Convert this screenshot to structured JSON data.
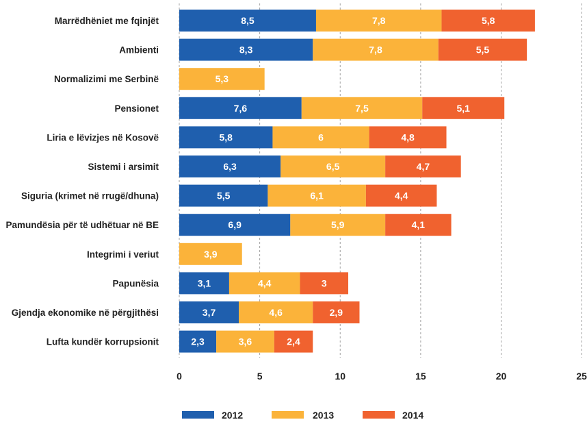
{
  "chart_data": {
    "type": "bar",
    "orientation": "horizontal",
    "stacked": true,
    "title": "",
    "xlabel": "",
    "ylabel": "",
    "xlim": [
      0,
      25
    ],
    "xticks": [
      0,
      5,
      10,
      15,
      20,
      25
    ],
    "grid": "vertical dashed",
    "legend_position": "bottom",
    "categories": [
      "Marrëdhëniet me fqinjët",
      "Ambienti",
      "Normalizimi me Serbinë",
      "Pensionet",
      "Liria e lëvizjes në Kosovë",
      "Sistemi i arsimit",
      "Siguria (krimet në rrugë/dhuna)",
      "Pamundësia për të udhëtuar në BE",
      "Integrimi i veriut",
      "Papunësia",
      "Gjendja ekonomike në përgjithësi",
      "Lufta kundër korrupsionit"
    ],
    "series": [
      {
        "name": "2012",
        "color": "#1f5fae",
        "values": [
          8.5,
          8.3,
          null,
          7.6,
          5.8,
          6.3,
          5.5,
          6.9,
          null,
          3.1,
          3.7,
          2.3
        ]
      },
      {
        "name": "2013",
        "color": "#fbb33a",
        "values": [
          7.8,
          7.8,
          5.3,
          7.5,
          6,
          6.5,
          6.1,
          5.9,
          3.9,
          4.4,
          4.6,
          3.6
        ]
      },
      {
        "name": "2014",
        "color": "#f0622f",
        "values": [
          5.8,
          5.5,
          null,
          5.1,
          4.8,
          4.7,
          4.4,
          4.1,
          null,
          3,
          2.9,
          2.4
        ]
      }
    ]
  }
}
